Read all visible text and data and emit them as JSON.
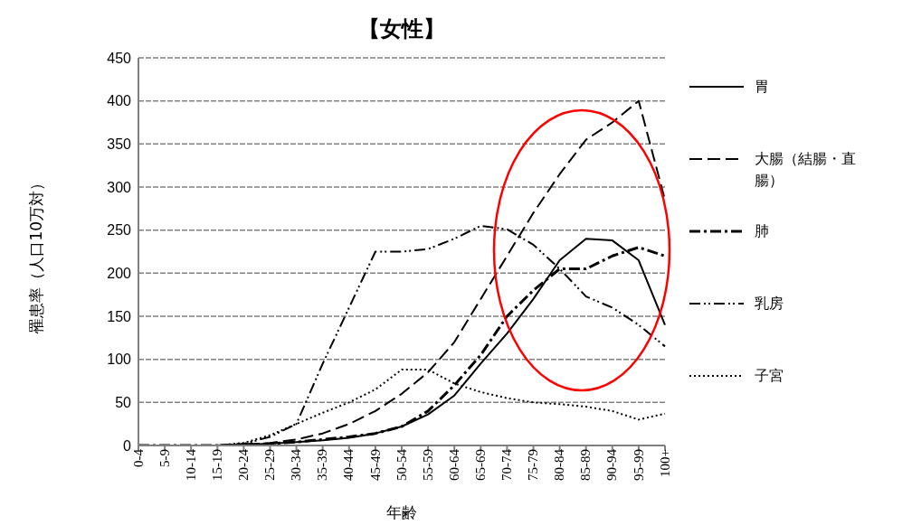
{
  "chart_data": {
    "type": "line",
    "title": "【女性】",
    "xlabel": "年齢",
    "ylabel": "罹患率（人口10万対）",
    "categories": [
      "0-4",
      "5-9",
      "10-14",
      "15-19",
      "20-24",
      "25-29",
      "30-34",
      "35-39",
      "40-44",
      "45-49",
      "50-54",
      "55-59",
      "60-64",
      "65-69",
      "70-74",
      "75-79",
      "80-84",
      "85-89",
      "90-94",
      "95-99",
      "100+"
    ],
    "series": [
      {
        "name": "胃",
        "color": "#000000",
        "line_style": "solid",
        "values": [
          0,
          0,
          0,
          0,
          1,
          2,
          4,
          6,
          9,
          14,
          22,
          36,
          58,
          95,
          130,
          170,
          215,
          240,
          238,
          215,
          140
        ]
      },
      {
        "name": "大腸（結腸・直腸）",
        "color": "#000000",
        "line_style": "dashed",
        "values": [
          0,
          0,
          0,
          0,
          1,
          3,
          7,
          14,
          25,
          40,
          60,
          85,
          120,
          170,
          220,
          270,
          315,
          355,
          375,
          400,
          285
        ]
      },
      {
        "name": "肺",
        "color": "#000000",
        "line_style": "dashdot",
        "values": [
          0,
          0,
          0,
          0,
          1,
          2,
          4,
          7,
          10,
          14,
          22,
          40,
          70,
          105,
          150,
          180,
          205,
          205,
          220,
          230,
          220
        ]
      },
      {
        "name": "乳房",
        "color": "#000000",
        "line_style": "dashdotdot",
        "values": [
          0,
          0,
          0,
          0,
          2,
          10,
          25,
          95,
          160,
          225,
          225,
          228,
          240,
          255,
          251,
          233,
          205,
          173,
          160,
          140,
          115
        ]
      },
      {
        "name": "子宮",
        "color": "#000000",
        "line_style": "dotted",
        "values": [
          0,
          0,
          0,
          0,
          3,
          12,
          25,
          38,
          50,
          65,
          88,
          88,
          72,
          62,
          55,
          50,
          48,
          45,
          40,
          30,
          37
        ]
      }
    ],
    "ylim": [
      0,
      450
    ],
    "yticks": [
      0,
      50,
      100,
      150,
      200,
      250,
      300,
      350,
      400,
      450
    ],
    "grid": "y",
    "legend": "right",
    "marker": "none"
  }
}
